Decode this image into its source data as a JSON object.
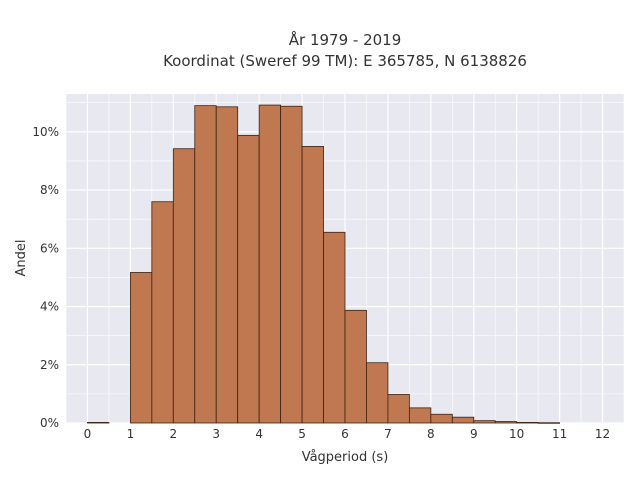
{
  "chart_data": {
    "type": "bar",
    "title_lines": [
      "År 1979 - 2019",
      "Koordinat (Sweref 99 TM): E 365785, N 6138826"
    ],
    "xlabel": "Vågperiod (s)",
    "ylabel": "Andel",
    "x_ticks": [
      "0",
      "1",
      "2",
      "3",
      "4",
      "5",
      "6",
      "7",
      "8",
      "9",
      "10",
      "11",
      "12"
    ],
    "y_ticks": [
      "0%",
      "2%",
      "4%",
      "6%",
      "8%",
      "10%"
    ],
    "xlim": [
      -0.5,
      12.5
    ],
    "ylim": [
      0,
      11.3
    ],
    "bar_width": 0.5,
    "bars": [
      {
        "x": 0.25,
        "value": 0.02
      },
      {
        "x": 1.25,
        "value": 5.17
      },
      {
        "x": 1.75,
        "value": 7.6
      },
      {
        "x": 2.25,
        "value": 9.42
      },
      {
        "x": 2.75,
        "value": 10.9
      },
      {
        "x": 3.25,
        "value": 10.86
      },
      {
        "x": 3.75,
        "value": 9.88
      },
      {
        "x": 4.25,
        "value": 10.92
      },
      {
        "x": 4.75,
        "value": 10.88
      },
      {
        "x": 5.25,
        "value": 9.5
      },
      {
        "x": 5.75,
        "value": 6.55
      },
      {
        "x": 6.25,
        "value": 3.87
      },
      {
        "x": 6.75,
        "value": 2.07
      },
      {
        "x": 7.25,
        "value": 0.98
      },
      {
        "x": 7.75,
        "value": 0.52
      },
      {
        "x": 8.25,
        "value": 0.3
      },
      {
        "x": 8.75,
        "value": 0.2
      },
      {
        "x": 9.25,
        "value": 0.08
      },
      {
        "x": 9.75,
        "value": 0.05
      },
      {
        "x": 10.25,
        "value": 0.02
      },
      {
        "x": 10.75,
        "value": 0.01
      }
    ],
    "grid": true,
    "colors": {
      "bar_fill": "#bf7850",
      "bar_stroke": "#3d2314",
      "plot_background": "#e8e8f0",
      "grid": "#ffffff"
    }
  }
}
